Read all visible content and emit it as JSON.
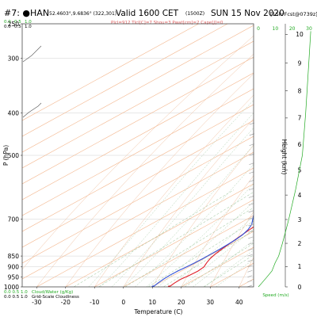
{
  "header": {
    "station": "#7: ●HAN",
    "coords": "52.4603°,9.6836° (322,301)",
    "valid": "Valid 1600 CET",
    "utc": "(1500Z)",
    "date": "SUN 15 Nov 2020",
    "forecast": "[15hrFcst@0739z]",
    "params": "Plcl=912 Tlcl[C]=7 Shou=3 Pwat[cm]=2 Cape[J]=0",
    "cloud_ticks": [
      "0.0",
      "0.5",
      "1.0"
    ]
  },
  "colors": {
    "temperature": "#e0202a",
    "dewpoint": "#3050d8",
    "isotherm": "#f4b890",
    "dry_adiabat": "#f0c0a0",
    "moist_adiabat": "#a8cca8",
    "mixing_ratio": "#8fbf8f",
    "height_axis": "#22aa22",
    "speed": "#22aa22",
    "label_orange": "#e8a070",
    "cloud_water": "#22aa22"
  },
  "chart_data": {
    "type": "line",
    "title": "Valid 1600 CET (1500Z) SUN 15 Nov 2020",
    "xlabel": "Temperature (C)",
    "ylabel": "P (hPa)",
    "height_label": "Height (km)",
    "speed_label": "Speed (m/s)",
    "xlim": [
      -35,
      45
    ],
    "pressure_range": [
      250,
      1000
    ],
    "x_ticks": [
      -30,
      -20,
      -10,
      0,
      10,
      20,
      30,
      40
    ],
    "p_ticks": [
      250,
      300,
      400,
      500,
      700,
      850,
      900,
      950,
      1000
    ],
    "height_ticks": [
      0,
      1,
      2,
      3,
      4,
      5,
      6,
      7,
      8,
      9,
      10
    ],
    "speed_ticks": [
      0,
      10,
      20,
      30
    ],
    "isotherm_labels": [
      0,
      10,
      20,
      30
    ],
    "legend": {
      "cloud_water": "Cloud/Water (g/Kg)",
      "grid_cloud": "Grid-Scale Cloudiness"
    },
    "series": [
      {
        "name": "",
        "points": [
          [
            15.8,
            1000
          ],
          [
            15.2,
            980
          ],
          [
            15.0,
            960
          ],
          [
            15.5,
            940
          ],
          [
            15.8,
            920
          ],
          [
            15.2,
            900
          ],
          [
            13.5,
            880
          ],
          [
            12.0,
            860
          ],
          [
            11.0,
            840
          ],
          [
            10.2,
            820
          ],
          [
            9.5,
            800
          ],
          [
            8.5,
            770
          ],
          [
            7.5,
            740
          ],
          [
            6.5,
            710
          ],
          [
            5.5,
            680
          ],
          [
            4.0,
            640
          ],
          [
            2.5,
            600
          ],
          [
            0.5,
            560
          ],
          [
            -1.0,
            530
          ],
          [
            -2.5,
            500
          ],
          [
            -4.5,
            470
          ],
          [
            -7.0,
            440
          ],
          [
            -9.5,
            410
          ],
          [
            -12.0,
            380
          ],
          [
            -15.0,
            350
          ],
          [
            -18.5,
            320
          ],
          [
            -21.5,
            300
          ],
          [
            -25.0,
            275
          ],
          [
            -28.5,
            260
          ]
        ]
      },
      {
        "name": "",
        "points": [
          [
            10.2,
            1000
          ],
          [
            9.5,
            980
          ],
          [
            9.0,
            960
          ],
          [
            8.7,
            940
          ],
          [
            8.8,
            920
          ],
          [
            9.2,
            900
          ],
          [
            9.5,
            880
          ],
          [
            9.6,
            860
          ],
          [
            9.6,
            840
          ],
          [
            9.5,
            820
          ],
          [
            9.3,
            800
          ],
          [
            9.0,
            780
          ],
          [
            8.3,
            760
          ],
          [
            7.0,
            740
          ],
          [
            5.0,
            720
          ],
          [
            2.0,
            700
          ],
          [
            -1.0,
            680
          ],
          [
            -4.0,
            660
          ],
          [
            -6.5,
            640
          ],
          [
            -8.5,
            620
          ],
          [
            -9.5,
            600
          ],
          [
            -10.5,
            580
          ],
          [
            -11.5,
            560
          ],
          [
            -12.0,
            540
          ],
          [
            -12.5,
            520
          ],
          [
            -13.5,
            500
          ],
          [
            -15.0,
            480
          ],
          [
            -17.0,
            460
          ],
          [
            -19.0,
            440
          ],
          [
            -21.0,
            420
          ],
          [
            -23.5,
            400
          ],
          [
            -26.0,
            380
          ],
          [
            -28.5,
            350
          ],
          [
            -30.5,
            320
          ],
          [
            -31.5,
            300
          ],
          [
            -32.5,
            280
          ],
          [
            -34.5,
            260
          ]
        ]
      }
    ]
  }
}
